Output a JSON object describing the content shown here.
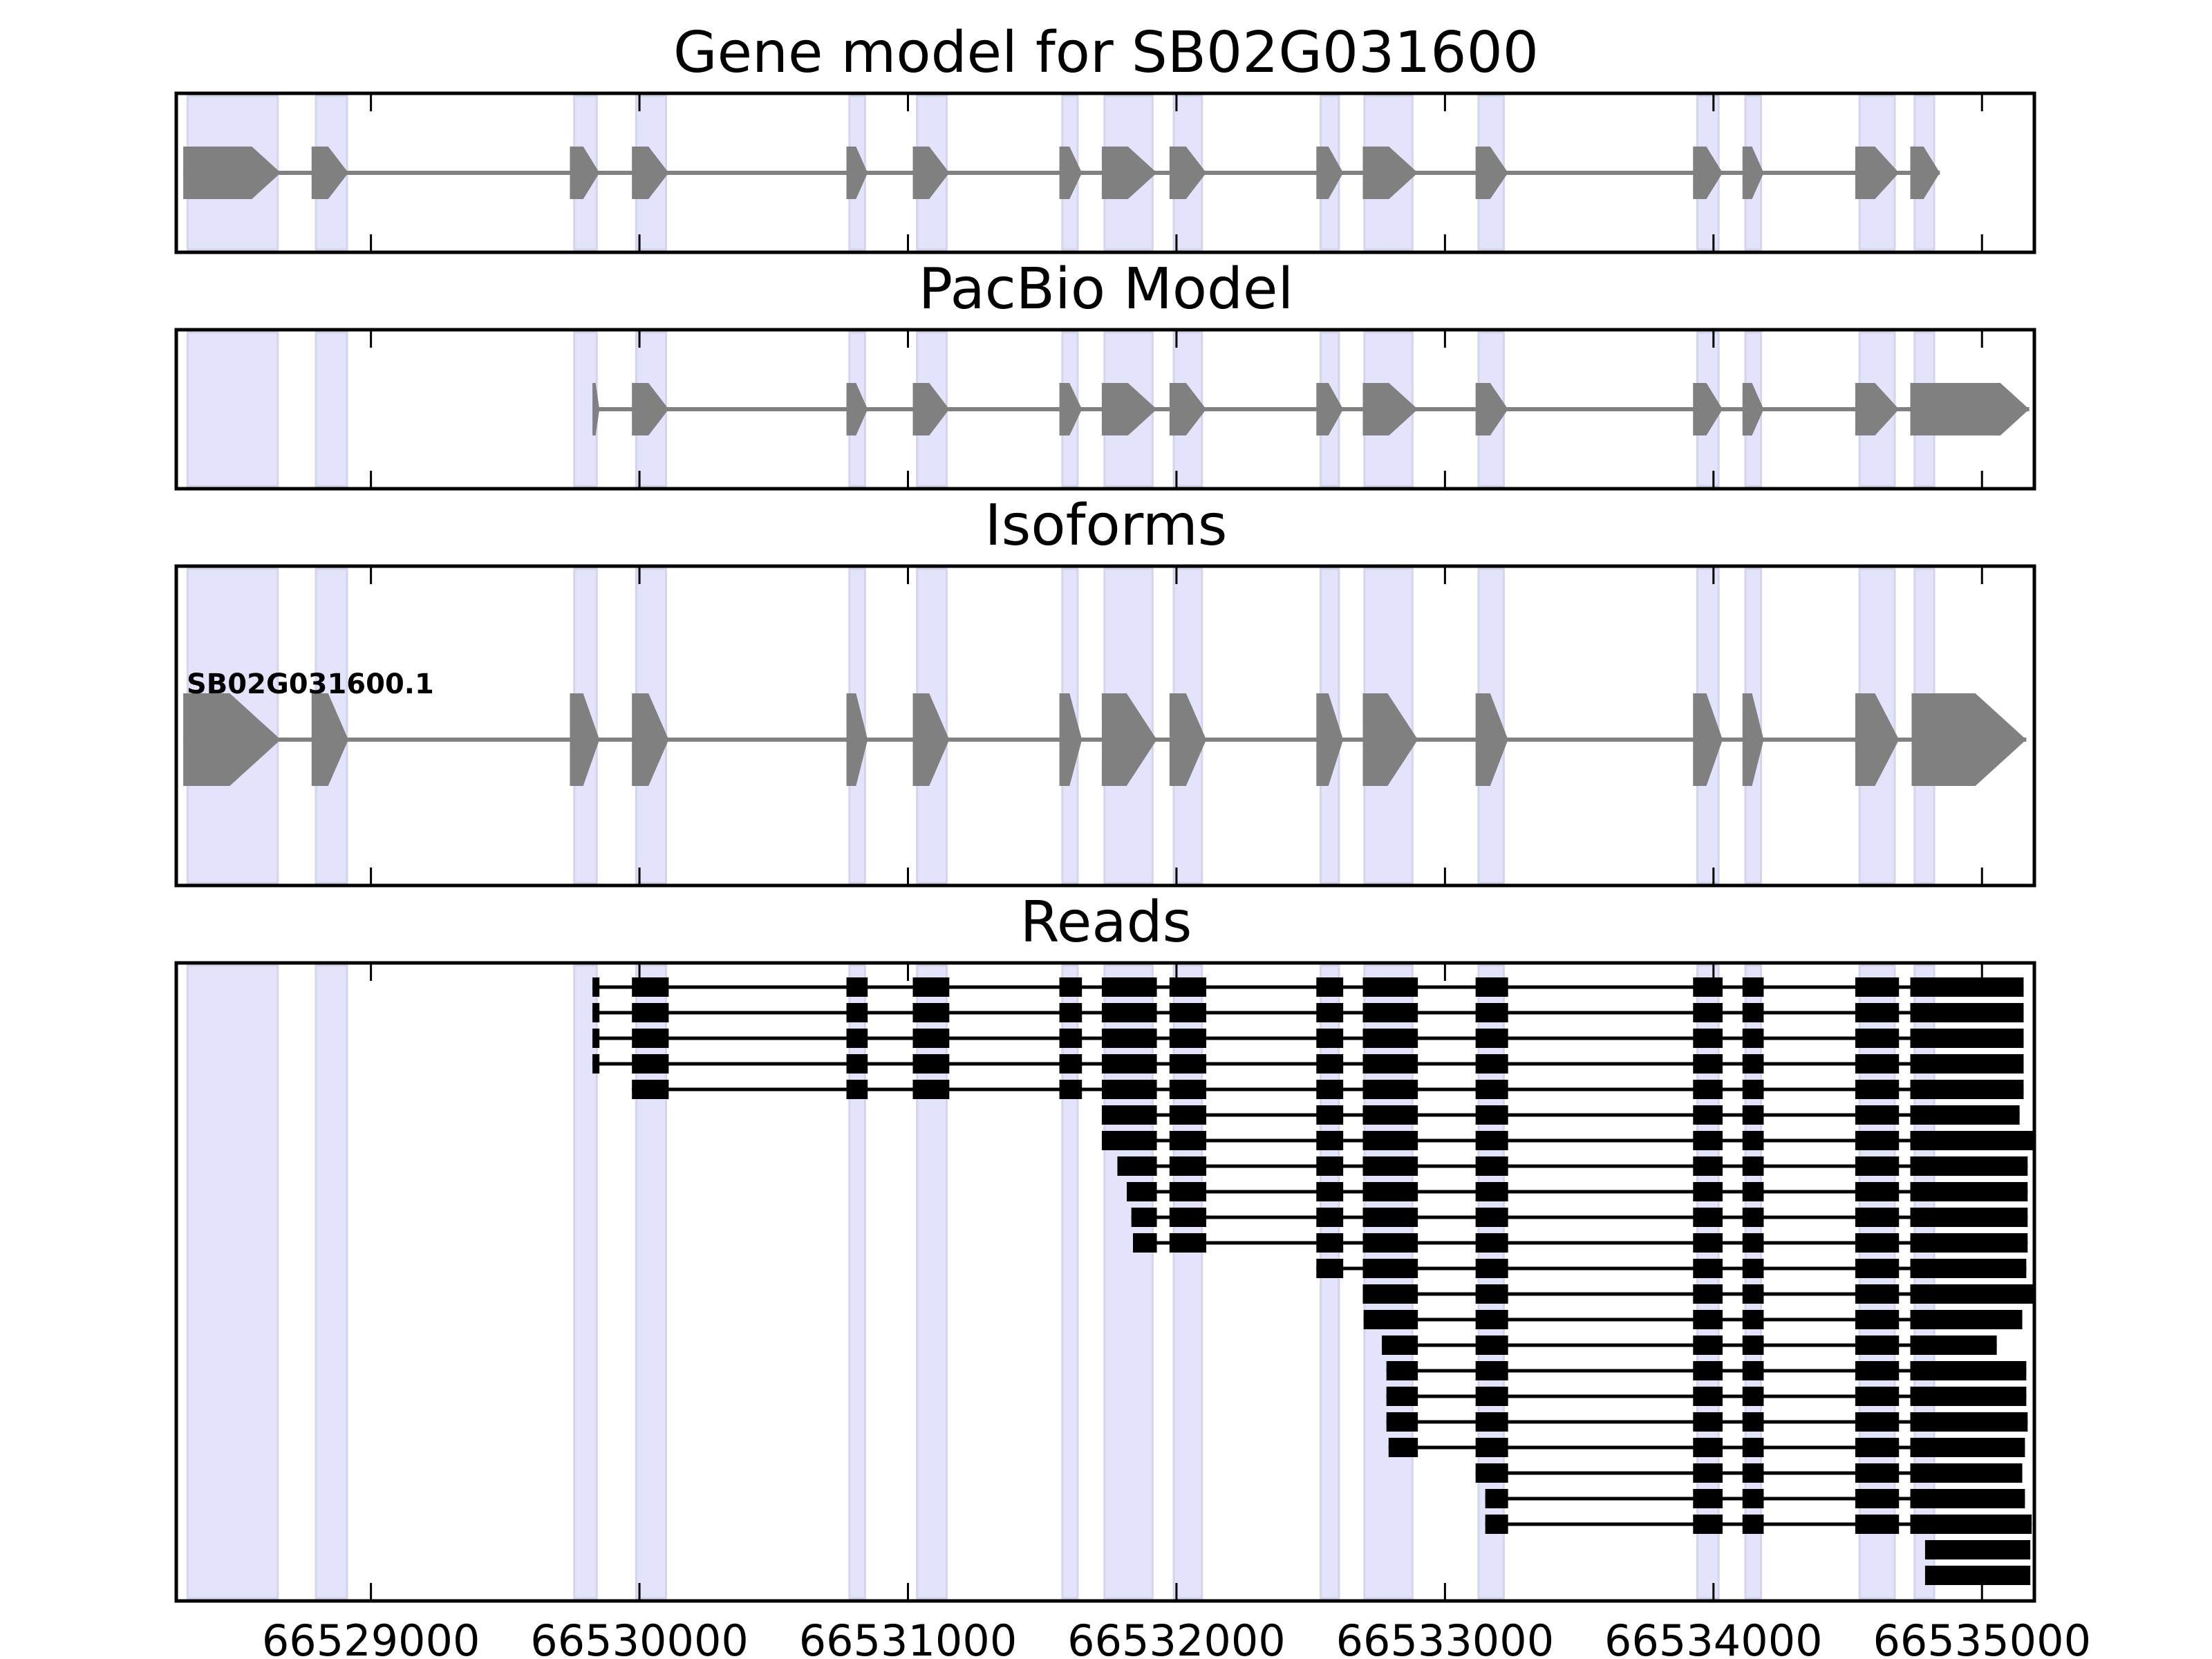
{
  "chart_data": {
    "type": "gene-track",
    "xlim": [
      66528275,
      66535195
    ],
    "xticks": [
      66529000,
      66530000,
      66531000,
      66532000,
      66533000,
      66534000,
      66535000
    ],
    "xtick_labels": [
      "66529000",
      "66530000",
      "66531000",
      "66532000",
      "66533000",
      "66534000",
      "66535000"
    ],
    "colors": {
      "band": "#e3e3fb",
      "band_edge": "#d4d4ee",
      "model": "#808080",
      "read": "#000000"
    },
    "bands": [
      [
        66528317,
        66528653
      ],
      [
        66528795,
        66528911
      ],
      [
        66529757,
        66529841
      ],
      [
        66529988,
        66530099
      ],
      [
        66530782,
        66530840
      ],
      [
        66531034,
        66531144
      ],
      [
        66531575,
        66531632
      ],
      [
        66531732,
        66531911
      ],
      [
        66531990,
        66532095
      ],
      [
        66532537,
        66532605
      ],
      [
        66532700,
        66532879
      ],
      [
        66533125,
        66533219
      ],
      [
        66533940,
        66534019
      ],
      [
        66534119,
        66534177
      ],
      [
        66534544,
        66534675
      ],
      [
        66534749,
        66534822
      ]
    ],
    "panels": [
      {
        "title": "Gene model for SB02G031600",
        "kind": "model",
        "exons": [
          [
            66528301,
            66528664
          ],
          [
            66528779,
            66528916
          ],
          [
            66529741,
            66529851
          ],
          [
            66529972,
            66530109
          ],
          [
            66530771,
            66530850
          ],
          [
            66531018,
            66531154
          ],
          [
            66531564,
            66531648
          ],
          [
            66531722,
            66531927
          ],
          [
            66531974,
            66532111
          ],
          [
            66532521,
            66532621
          ],
          [
            66532694,
            66532899
          ],
          [
            66533114,
            66533235
          ],
          [
            66533924,
            66534034
          ],
          [
            66534108,
            66534187
          ],
          [
            66534528,
            66534691
          ],
          [
            66534733,
            66534843
          ]
        ]
      },
      {
        "title": "PacBio Model",
        "kind": "model",
        "exons": [
          [
            66529825,
            66529851
          ],
          [
            66529972,
            66530109
          ],
          [
            66530771,
            66530850
          ],
          [
            66531018,
            66531154
          ],
          [
            66531564,
            66531648
          ],
          [
            66531722,
            66531927
          ],
          [
            66531974,
            66532111
          ],
          [
            66532521,
            66532621
          ],
          [
            66532694,
            66532899
          ],
          [
            66533114,
            66533235
          ],
          [
            66533924,
            66534034
          ],
          [
            66534108,
            66534187
          ],
          [
            66534528,
            66534691
          ],
          [
            66534733,
            66535176
          ]
        ]
      },
      {
        "title": "Isoforms",
        "kind": "isoform",
        "label": "SB02G031600.1",
        "exons": [
          [
            66528301,
            66528664
          ],
          [
            66528779,
            66528916
          ],
          [
            66529741,
            66529851
          ],
          [
            66529972,
            66530109
          ],
          [
            66530771,
            66530850
          ],
          [
            66531018,
            66531154
          ],
          [
            66531564,
            66531648
          ],
          [
            66531722,
            66531927
          ],
          [
            66531974,
            66532111
          ],
          [
            66532521,
            66532621
          ],
          [
            66532694,
            66532899
          ],
          [
            66533114,
            66533235
          ],
          [
            66533924,
            66534034
          ],
          [
            66534108,
            66534187
          ],
          [
            66534528,
            66534691
          ],
          [
            66534738,
            66535165
          ]
        ]
      },
      {
        "title": "Reads",
        "kind": "reads",
        "reads": [
          {
            "start": 66529820,
            "end": 66535155
          },
          {
            "start": 66529820,
            "end": 66535155
          },
          {
            "start": 66529820,
            "end": 66535155
          },
          {
            "start": 66529820,
            "end": 66535155
          },
          {
            "start": 66529972,
            "end": 66535155
          },
          {
            "start": 66531720,
            "end": 66535140
          },
          {
            "start": 66531720,
            "end": 66535195
          },
          {
            "start": 66531780,
            "end": 66535170
          },
          {
            "start": 66531815,
            "end": 66535170
          },
          {
            "start": 66531832,
            "end": 66535170
          },
          {
            "start": 66531838,
            "end": 66535170
          },
          {
            "start": 66532521,
            "end": 66535165
          },
          {
            "start": 66532694,
            "end": 66535195
          },
          {
            "start": 66532697,
            "end": 66535150
          },
          {
            "start": 66532765,
            "end": 66535055
          },
          {
            "start": 66532782,
            "end": 66535165
          },
          {
            "start": 66532782,
            "end": 66535165
          },
          {
            "start": 66532782,
            "end": 66535170
          },
          {
            "start": 66532790,
            "end": 66535160
          },
          {
            "start": 66533114,
            "end": 66535150
          },
          {
            "start": 66533150,
            "end": 66535160
          },
          {
            "start": 66533150,
            "end": 66535185
          },
          {
            "start": 66534788,
            "end": 66535180
          },
          {
            "start": 66534788,
            "end": 66535180
          }
        ]
      }
    ]
  }
}
